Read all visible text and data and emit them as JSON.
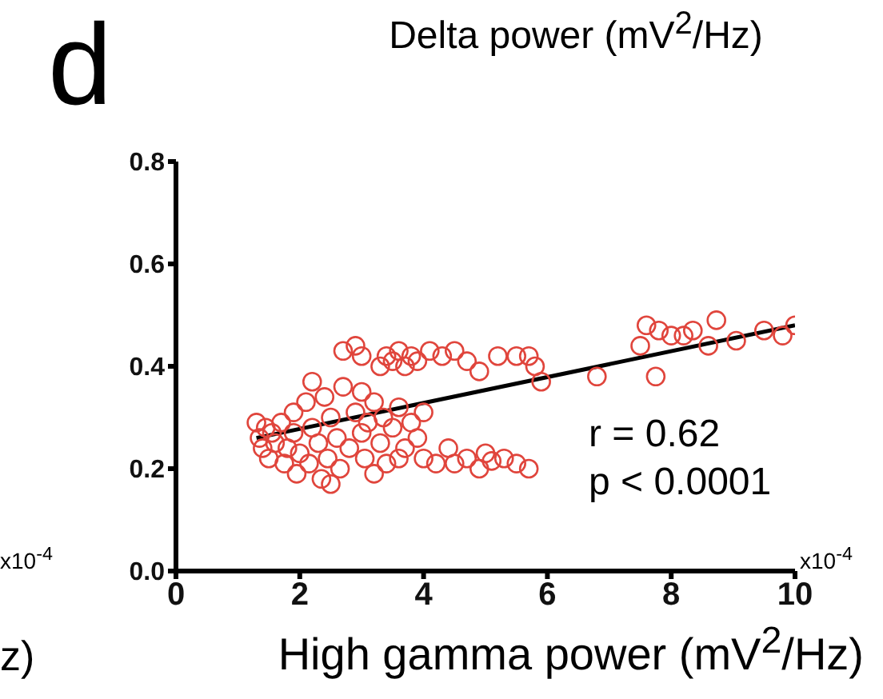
{
  "chart_data": {
    "type": "scatter",
    "title": "Delta power (mV$^{2}$/Hz)",
    "xlabel": "High gamma power (mV$^{2}$/Hz)",
    "annotations": [
      "d",
      "r = 0.62",
      "p < 0.0001",
      "x10$^{-4}$",
      "x10$^{-4}$",
      "z)"
    ],
    "xlim": [
      0,
      10
    ],
    "xticks": [
      0,
      2,
      4,
      6,
      8,
      10
    ],
    "ylim": [
      0,
      0.8
    ],
    "yticks": [
      {
        "value": 0,
        "label": "0.0"
      },
      {
        "value": 0.2,
        "label": "0.2"
      },
      {
        "value": 0.4,
        "label": "0.4"
      },
      {
        "value": 0.6,
        "label": "0.6"
      },
      {
        "value": 0.8,
        "label": "0.8"
      }
    ],
    "grid": false,
    "marker": "circle",
    "series": [
      {
        "color": "#e0453c",
        "x": [
          1.3,
          1.35,
          1.4,
          1.45,
          1.5,
          1.55,
          1.6,
          1.7,
          1.75,
          1.8,
          1.9,
          1.95,
          2.0,
          2.1,
          2.15,
          2.2,
          2.3,
          2.35,
          2.4,
          2.45,
          2.5,
          2.6,
          2.65,
          2.7,
          2.8,
          2.9,
          3.0,
          3.05,
          3.1,
          3.2,
          3.3,
          3.35,
          3.4,
          3.5,
          3.6,
          3.7,
          3.8,
          3.9,
          4.0,
          2.2,
          1.9,
          2.5,
          3.0,
          3.2,
          2.7,
          2.9,
          3.0,
          3.3,
          3.4,
          3.5,
          3.6,
          3.7,
          3.8,
          3.9,
          4.1,
          4.3,
          4.5,
          4.7,
          4.9,
          5.2,
          5.5,
          5.7,
          5.9,
          5.8,
          4.0,
          4.2,
          4.4,
          4.5,
          4.7,
          4.9,
          5.0,
          5.1,
          5.3,
          5.5,
          5.7,
          3.6,
          6.8,
          7.5,
          7.6,
          7.75,
          7.8,
          8.0,
          8.2,
          8.35,
          8.6,
          8.73,
          9.05,
          9.5,
          9.8,
          10
        ],
        "values": [
          0.29,
          0.26,
          0.24,
          0.28,
          0.22,
          0.27,
          0.25,
          0.29,
          0.21,
          0.24,
          0.27,
          0.19,
          0.23,
          0.33,
          0.21,
          0.28,
          0.25,
          0.18,
          0.34,
          0.22,
          0.3,
          0.26,
          0.2,
          0.36,
          0.24,
          0.31,
          0.27,
          0.22,
          0.29,
          0.33,
          0.25,
          0.3,
          0.21,
          0.28,
          0.32,
          0.24,
          0.29,
          0.26,
          0.31,
          0.37,
          0.31,
          0.17,
          0.35,
          0.19,
          0.43,
          0.44,
          0.42,
          0.4,
          0.42,
          0.41,
          0.43,
          0.4,
          0.42,
          0.41,
          0.43,
          0.42,
          0.43,
          0.41,
          0.39,
          0.42,
          0.42,
          0.42,
          0.37,
          0.4,
          0.22,
          0.21,
          0.24,
          0.21,
          0.22,
          0.2,
          0.23,
          0.215,
          0.22,
          0.21,
          0.2,
          0.22,
          0.38,
          0.44,
          0.48,
          0.38,
          0.47,
          0.46,
          0.46,
          0.47,
          0.44,
          0.49,
          0.45,
          0.47,
          0.46,
          0.48
        ]
      },
      {
        "type": "line",
        "color": "#000000",
        "marker": "none",
        "x": [
          1.3,
          10
        ],
        "values": [
          0.26,
          0.48
        ]
      }
    ]
  }
}
